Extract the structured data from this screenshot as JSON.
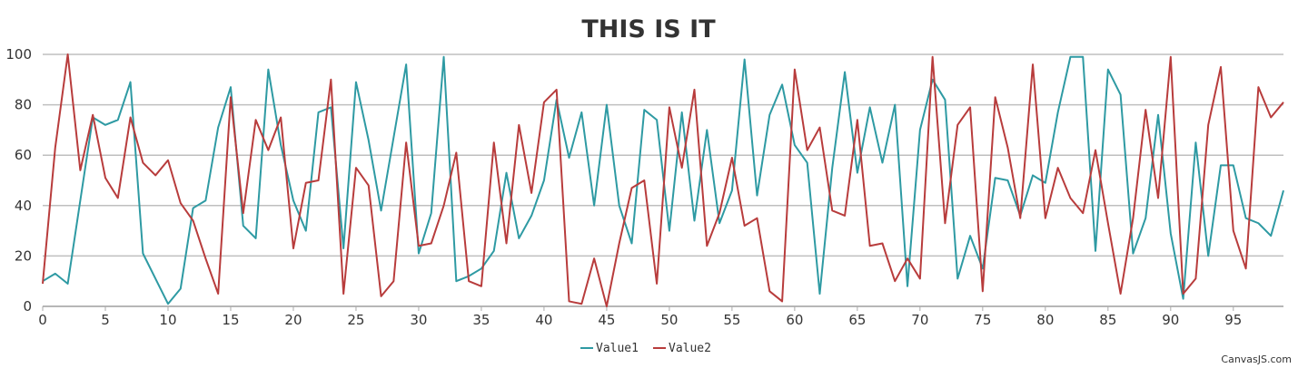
{
  "chart_data": {
    "type": "line",
    "title": "THIS IS IT",
    "xlabel": "",
    "ylabel": "",
    "xlim": [
      0,
      99
    ],
    "ylim": [
      0,
      100
    ],
    "x_ticks": [
      0,
      5,
      10,
      15,
      20,
      25,
      30,
      35,
      40,
      45,
      50,
      55,
      60,
      65,
      70,
      75,
      80,
      85,
      90,
      95
    ],
    "y_ticks": [
      0,
      20,
      40,
      60,
      80,
      100
    ],
    "grid": "horizontal",
    "legend_position": "bottom-center",
    "x": [
      0,
      1,
      2,
      3,
      4,
      5,
      6,
      7,
      8,
      9,
      10,
      11,
      12,
      13,
      14,
      15,
      16,
      17,
      18,
      19,
      20,
      21,
      22,
      23,
      24,
      25,
      26,
      27,
      28,
      29,
      30,
      31,
      32,
      33,
      34,
      35,
      36,
      37,
      38,
      39,
      40,
      41,
      42,
      43,
      44,
      45,
      46,
      47,
      48,
      49,
      50,
      51,
      52,
      53,
      54,
      55,
      56,
      57,
      58,
      59,
      60,
      61,
      62,
      63,
      64,
      65,
      66,
      67,
      68,
      69,
      70,
      71,
      72,
      73,
      74,
      75,
      76,
      77,
      78,
      79,
      80,
      81,
      82,
      83,
      84,
      85,
      86,
      87,
      88,
      89,
      90,
      91,
      92,
      93,
      94,
      95,
      96,
      97,
      98,
      99
    ],
    "series": [
      {
        "name": "Value1",
        "color": "#2e9aa3",
        "values": [
          10,
          13,
          9,
          42,
          75,
          72,
          74,
          89,
          21,
          11,
          1,
          7,
          39,
          42,
          71,
          87,
          32,
          27,
          94,
          64,
          42,
          30,
          77,
          79,
          23,
          89,
          66,
          38,
          67,
          96,
          21,
          37,
          99,
          10,
          12,
          15,
          22,
          53,
          27,
          36,
          50,
          82,
          59,
          77,
          40,
          80,
          40,
          25,
          78,
          74,
          30,
          77,
          34,
          70,
          33,
          46,
          98,
          44,
          76,
          88,
          64,
          57,
          5,
          55,
          93,
          53,
          79,
          57,
          80,
          8,
          70,
          90,
          82,
          11,
          28,
          15,
          51,
          50,
          36,
          52,
          49,
          77,
          99,
          99,
          22,
          94,
          84,
          21,
          35,
          76,
          29,
          3,
          65,
          20,
          56,
          56,
          35,
          33,
          28,
          46
        ]
      },
      {
        "name": "Value2",
        "color": "#b83c3c",
        "values": [
          9,
          63,
          100,
          54,
          76,
          51,
          43,
          75,
          57,
          52,
          58,
          41,
          34,
          19,
          5,
          83,
          37,
          74,
          62,
          75,
          23,
          49,
          50,
          90,
          5,
          55,
          48,
          4,
          10,
          65,
          24,
          25,
          40,
          61,
          10,
          8,
          65,
          25,
          72,
          45,
          81,
          86,
          2,
          1,
          19,
          0,
          25,
          47,
          50,
          9,
          79,
          55,
          86,
          24,
          37,
          59,
          32,
          35,
          6,
          2,
          94,
          62,
          71,
          38,
          36,
          74,
          24,
          25,
          10,
          19,
          11,
          99,
          33,
          72,
          79,
          6,
          83,
          63,
          35,
          96,
          35,
          55,
          43,
          37,
          62,
          33,
          5,
          35,
          78,
          43,
          99,
          5,
          11,
          72,
          95,
          30,
          15,
          87,
          75,
          81
        ]
      }
    ]
  },
  "credit": "CanvasJS.com",
  "colors": {
    "grid": "#bfbfbf",
    "axis": "#aaaaaa",
    "text": "#333333"
  }
}
